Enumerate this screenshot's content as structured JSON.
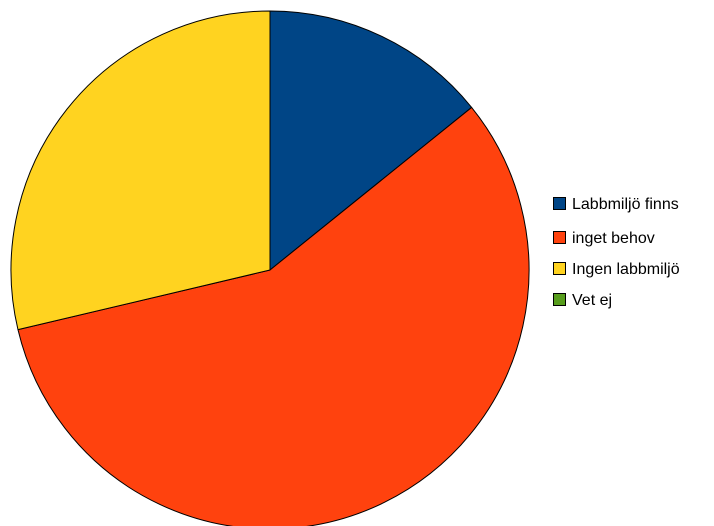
{
  "chart_data": {
    "type": "pie",
    "title": "",
    "categories": [
      "Labbmiljö finns",
      "inget behov",
      "Ingen labbmiljö",
      "Vet ej"
    ],
    "values": [
      14.2,
      57.1,
      28.7,
      0
    ],
    "units": "percent",
    "colors": [
      "#004586",
      "#ff420e",
      "#ffd320",
      "#579d1c"
    ],
    "start_angle_deg": 0,
    "direction": "clockwise",
    "legend": {
      "position": "right",
      "entries": [
        "Labbmiljö finns",
        "inget behov",
        "Ingen labbmiljö",
        "Vet ej"
      ]
    }
  }
}
